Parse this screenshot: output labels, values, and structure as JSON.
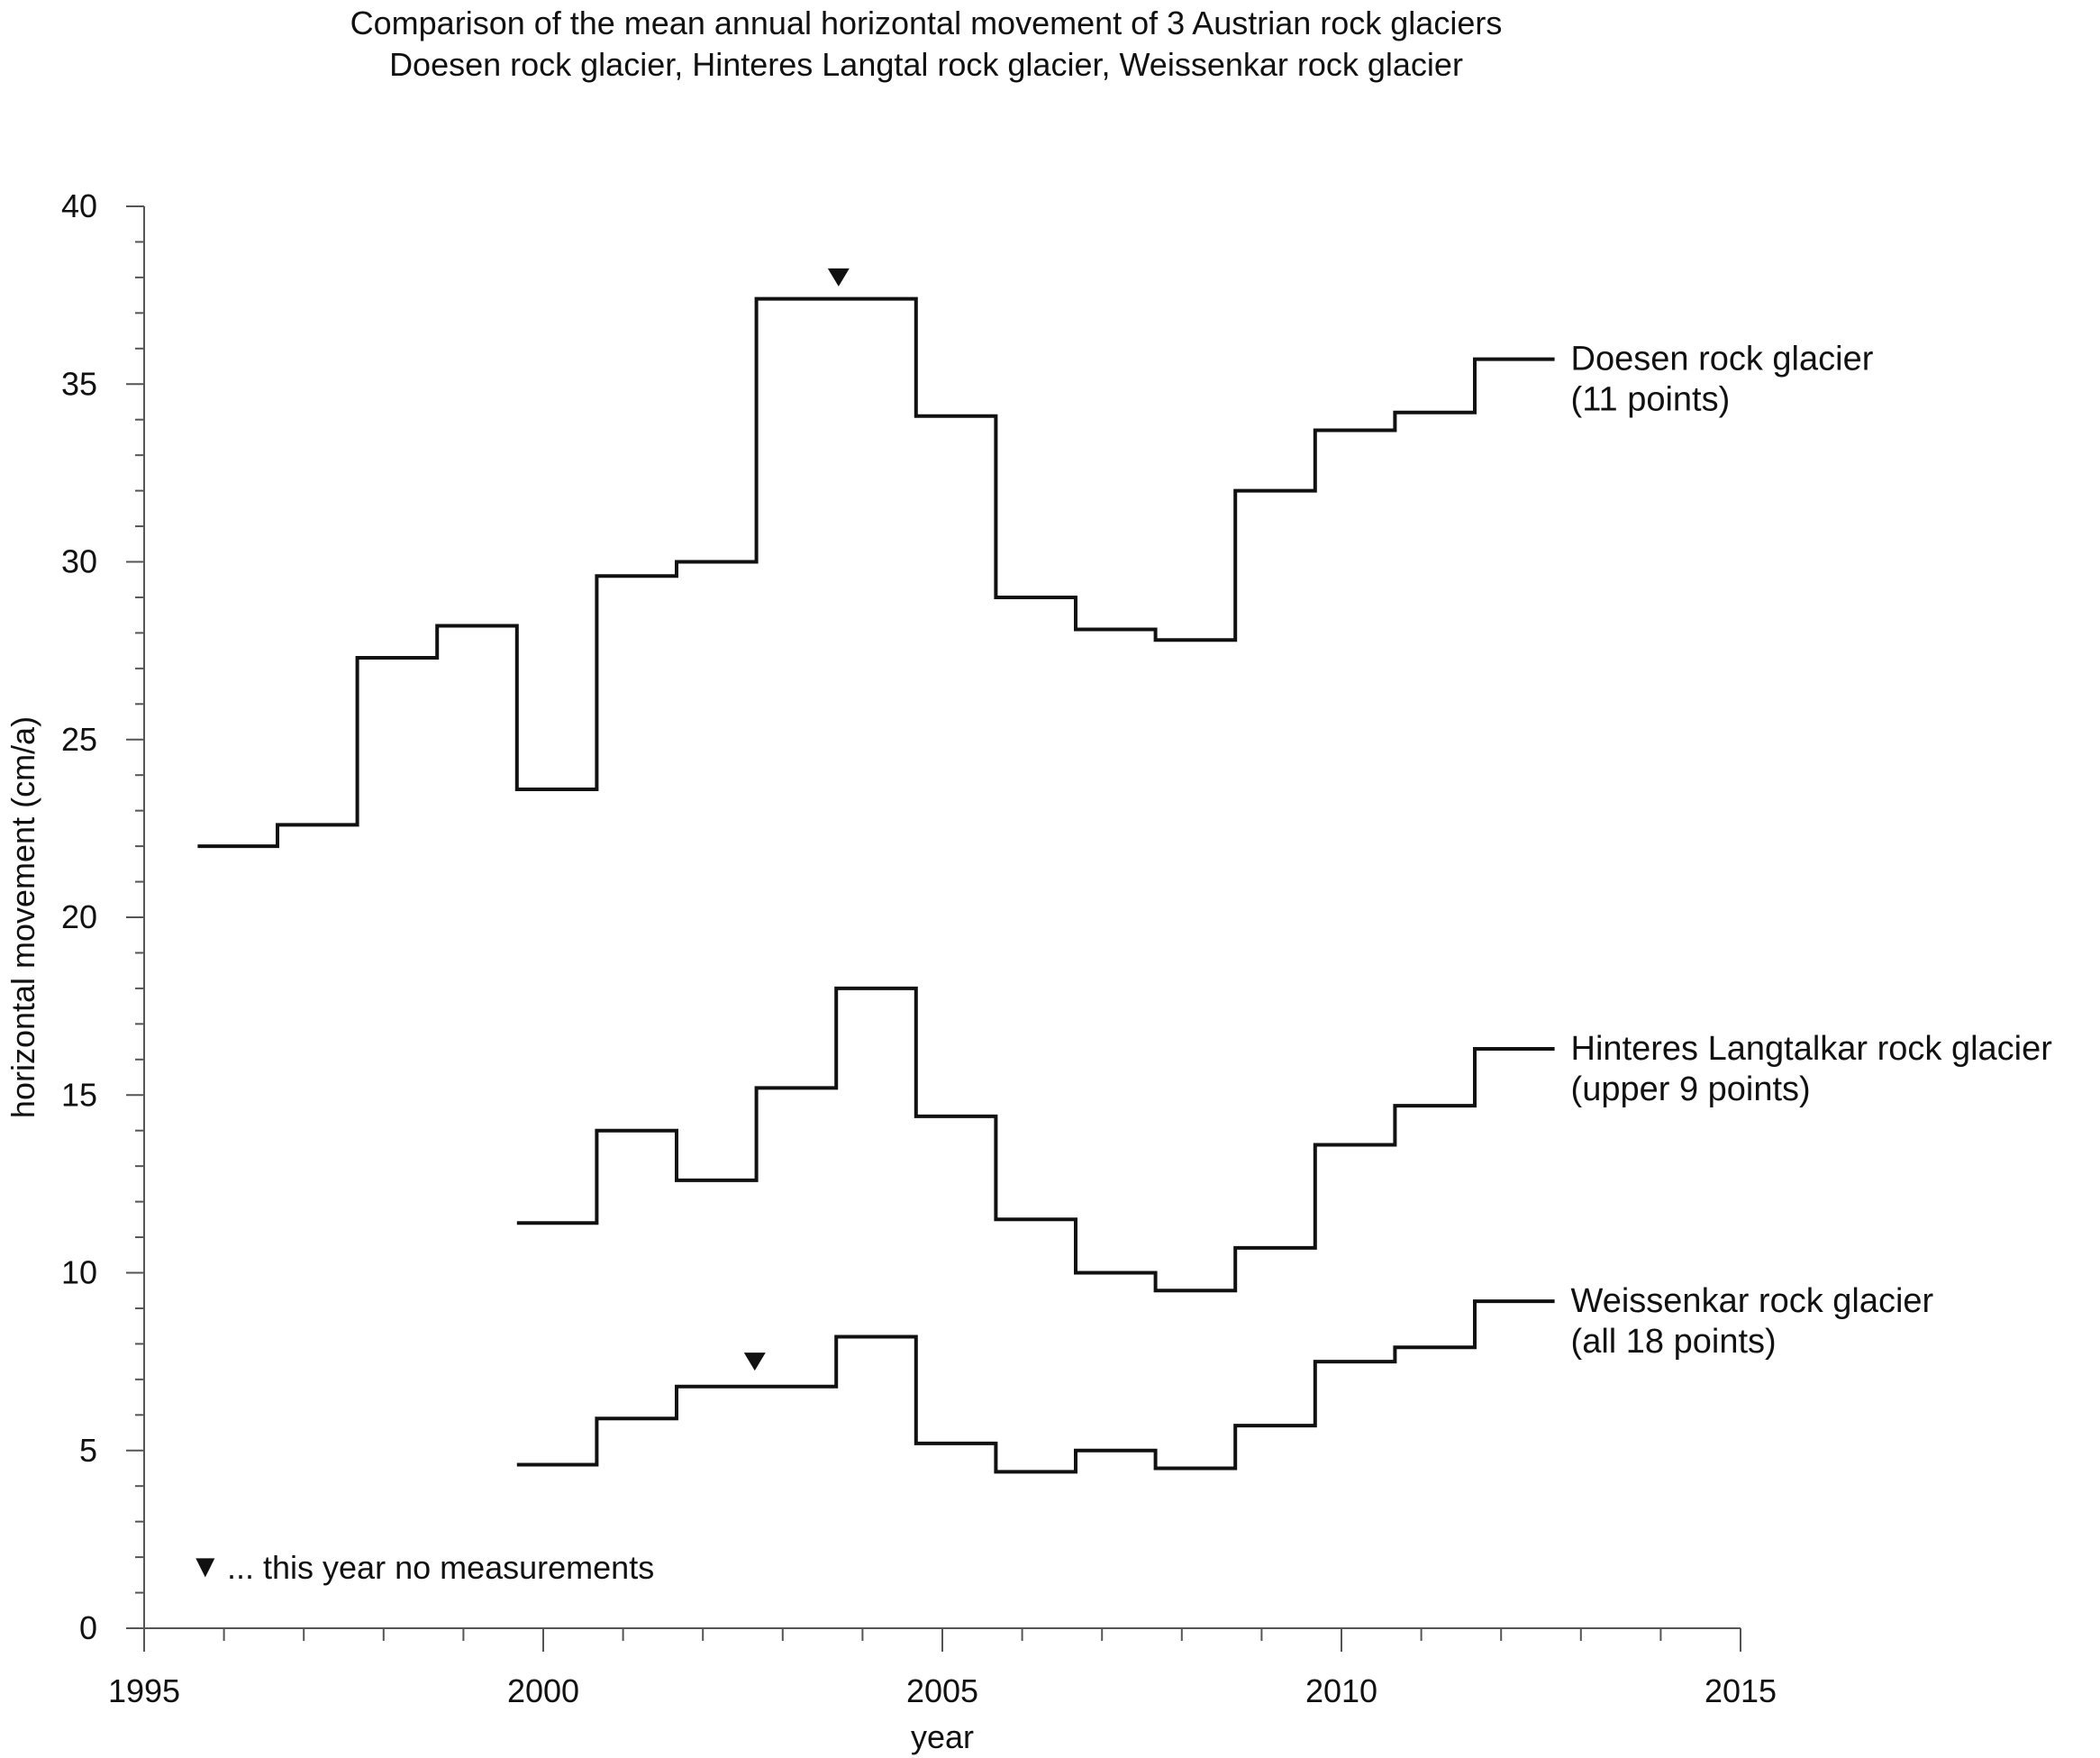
{
  "chart_data": {
    "type": "line",
    "step": true,
    "title": "Comparison of the mean annual horizontal movement of 3 Austrian rock glaciers",
    "subtitle": "Doesen rock glacier, Hinteres Langtal rock glacier, Weissenkar rock glacier",
    "xlabel": "year",
    "ylabel": "horizontal movement (cm/a)",
    "xlim": [
      1995,
      2015
    ],
    "ylim": [
      0,
      40
    ],
    "x_ticks": [
      1995,
      2000,
      2005,
      2010,
      2015
    ],
    "x_tick_labels": [
      "1995",
      "2000",
      "2005",
      "2010",
      "2015"
    ],
    "y_ticks": [
      0,
      5,
      10,
      15,
      20,
      25,
      30,
      35,
      40
    ],
    "y_tick_labels": [
      "0",
      "5",
      "10",
      "15",
      "20",
      "25",
      "30",
      "35",
      "40"
    ],
    "x_minor_step": 1,
    "y_minor_step": 1,
    "grid": false,
    "line_color": "#111111",
    "series": [
      {
        "label_line1": "Doesen rock glacier",
        "label_line2": "(11 points)",
        "x_start": [
          1995.67,
          1996.67,
          1997.67,
          1998.67,
          1999.67,
          2000.67,
          2001.67,
          2002.67,
          2003.67,
          2004.67,
          2005.67,
          2006.67,
          2007.67,
          2008.67,
          2009.67,
          2010.67,
          2011.67
        ],
        "x_end": 2012.67,
        "values": [
          22.0,
          22.6,
          27.3,
          28.2,
          23.6,
          29.6,
          30.0,
          37.4,
          37.4,
          34.1,
          29.0,
          28.1,
          27.8,
          32.0,
          33.7,
          34.2,
          35.7
        ],
        "no_measurement_markers": [
          {
            "x": 2003.7,
            "y": 38.0
          }
        ]
      },
      {
        "label_line1": "Hinteres Langtalkar rock glacier",
        "label_line2": "(upper 9 points)",
        "x_start": [
          1999.67,
          2000.67,
          2001.67,
          2002.67,
          2003.67,
          2004.67,
          2005.67,
          2006.67,
          2007.67,
          2008.67,
          2009.67,
          2010.67,
          2011.67
        ],
        "x_end": 2012.67,
        "values": [
          11.4,
          14.0,
          12.6,
          15.2,
          18.0,
          14.4,
          11.5,
          10.0,
          9.5,
          10.7,
          13.6,
          14.7,
          16.3
        ],
        "no_measurement_markers": []
      },
      {
        "label_line1": "Weissenkar rock glacier",
        "label_line2": "(all 18 points)",
        "x_start": [
          1999.67,
          2000.67,
          2001.67,
          2002.67,
          2003.67,
          2004.67,
          2005.67,
          2006.67,
          2007.67,
          2008.67,
          2009.67,
          2010.67,
          2011.67
        ],
        "x_end": 2012.67,
        "values": [
          4.6,
          5.9,
          6.8,
          6.8,
          8.2,
          5.2,
          4.4,
          5.0,
          4.5,
          5.7,
          7.5,
          7.9,
          9.2
        ],
        "no_measurement_markers": [
          {
            "x": 2002.65,
            "y": 7.5
          }
        ]
      }
    ],
    "legend_note": {
      "symbol": "▼",
      "text": "... this year no measurements"
    }
  }
}
